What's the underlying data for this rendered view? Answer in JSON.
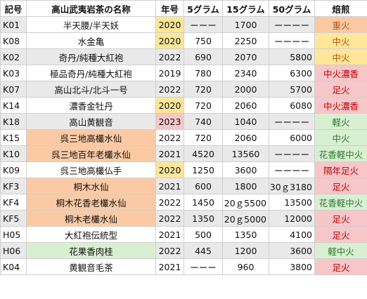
{
  "headers": {
    "code": "記号",
    "name": "高山武夷岩茶の名称",
    "year": "年号",
    "g5": "5グラム",
    "g15": "15グラム",
    "g50": "50グラム",
    "fire": "焙煎"
  },
  "rows": [
    {
      "code": "K01",
      "name": "半天腰/半天妖",
      "year": "2020",
      "g5": "ーーー",
      "g15": "1700",
      "g50": "ーーーー",
      "fire": "重火"
    },
    {
      "code": "K08",
      "name": "水金亀",
      "year": "2020",
      "g5": "750",
      "g15": "2250",
      "g50": "ーーーー",
      "fire": "中火"
    },
    {
      "code": "K02",
      "name": "奇丹/純種大紅袍",
      "year": "2022",
      "g5": "690",
      "g15": "2070",
      "g50": "5800",
      "fire": "中火"
    },
    {
      "code": "K03",
      "name": "極品奇丹/純種大紅袍",
      "year": "2019",
      "g5": "780",
      "g15": "2340",
      "g50": "6300",
      "fire": "中火濃香"
    },
    {
      "code": "K07",
      "name": "高山北斗/北斗一号",
      "year": "2022",
      "g5": "720",
      "g15": "2000",
      "g50": "5700",
      "fire": "足火"
    },
    {
      "code": "K14",
      "name": "濃香金牡丹",
      "year": "2020",
      "g5": "720",
      "g15": "2060",
      "g50": "6080",
      "fire": "中火濃香"
    },
    {
      "code": "K18",
      "name": "高山黄観音",
      "year": "2023",
      "g5": "740",
      "g15": "1040",
      "g50": "ーーーー",
      "fire": "軽火"
    },
    {
      "code": "K15",
      "name": "呉三地高欉水仙",
      "year": "2022",
      "g5": "720",
      "g15": "2060",
      "g50": "6000",
      "fire": "中火"
    },
    {
      "code": "K10",
      "name": "呉三地百年老欉水仙",
      "year": "2021",
      "g5": "4520",
      "g15": "13560",
      "g50": "ーーーー",
      "fire": "花香軽中火"
    },
    {
      "code": "K09",
      "name": "呉三地高欉仏手",
      "year": "2020",
      "g5": "1250",
      "g15": "3600",
      "g50": "ーーーー",
      "fire": "隔年足火"
    },
    {
      "code": "KF3",
      "name": "桐木水仙",
      "year": "2021",
      "g5": "600",
      "g15": "1800",
      "g50": "30ｇ3180",
      "fire": "足火"
    },
    {
      "code": "KF4",
      "name": "桐木花香老欉水仙",
      "year": "2022",
      "g5": "1450",
      "g15": "20ｇ5500",
      "g50": "13500",
      "fire": "花香軽中火"
    },
    {
      "code": "KF5",
      "name": "桐木老欉水仙",
      "year": "2022",
      "g5": "1350",
      "g15": "20ｇ5000",
      "g50": "12000",
      "fire": "足火"
    },
    {
      "code": "H05",
      "name": "大紅袍伝統型",
      "year": "2021",
      "g5": "500",
      "g15": "1350",
      "g50": "4100",
      "fire": "足火"
    },
    {
      "code": "H06",
      "name": "花果香肉桂",
      "year": "2022",
      "g5": "445",
      "g15": "1200",
      "g50": "3600",
      "fire": "軽中火"
    },
    {
      "code": "K04",
      "name": "黄観音毛茶",
      "year": "2021",
      "g5": "ーーー",
      "g15": "960",
      "g50": "3800",
      "fire": "足火"
    }
  ],
  "colors": {
    "orange": "#fbcaa4",
    "yellow": "#ffe699",
    "pink": "#f7c6c9",
    "green": "#d9efd1",
    "grey": "#e9e9e9"
  }
}
